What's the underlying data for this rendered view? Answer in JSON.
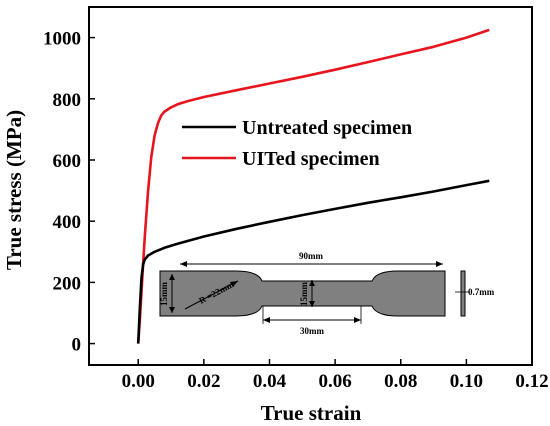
{
  "chart_data": {
    "type": "line",
    "title": "",
    "xlabel": "True strain",
    "ylabel": "True stress (MPa)",
    "xlim": [
      -0.015,
      0.12
    ],
    "ylim": [
      -70,
      1100
    ],
    "xticks": [
      "0.00",
      "0.02",
      "0.04",
      "0.06",
      "0.08",
      "0.10",
      "0.12"
    ],
    "yticks": [
      "0",
      "200",
      "400",
      "600",
      "800",
      "1000"
    ],
    "legend_position": "center",
    "series": [
      {
        "name": "Untreated specimen",
        "color": "#000000",
        "x": [
          0.0,
          0.0005,
          0.001,
          0.0015,
          0.002,
          0.003,
          0.005,
          0.008,
          0.012,
          0.02,
          0.03,
          0.04,
          0.05,
          0.06,
          0.07,
          0.08,
          0.09,
          0.1,
          0.107
        ],
        "y": [
          0,
          120,
          215,
          258,
          275,
          288,
          300,
          313,
          326,
          350,
          375,
          398,
          420,
          440,
          460,
          478,
          497,
          518,
          532
        ]
      },
      {
        "name": "UITed specimen",
        "color": "#e8141e",
        "x": [
          0.0,
          0.0005,
          0.001,
          0.0015,
          0.002,
          0.003,
          0.004,
          0.005,
          0.006,
          0.007,
          0.008,
          0.01,
          0.012,
          0.015,
          0.02,
          0.03,
          0.04,
          0.05,
          0.06,
          0.07,
          0.08,
          0.09,
          0.1,
          0.107
        ],
        "y": [
          0,
          80,
          170,
          260,
          350,
          500,
          610,
          680,
          720,
          745,
          758,
          772,
          782,
          792,
          806,
          828,
          850,
          872,
          895,
          920,
          945,
          970,
          1000,
          1025
        ]
      }
    ]
  },
  "inset": {
    "dims": {
      "length": "90mm",
      "radius": "R =22mm",
      "grip_width": "15mm",
      "gauge_width": "15mm",
      "gauge_length": "30mm",
      "thickness": "0.7mm"
    }
  }
}
